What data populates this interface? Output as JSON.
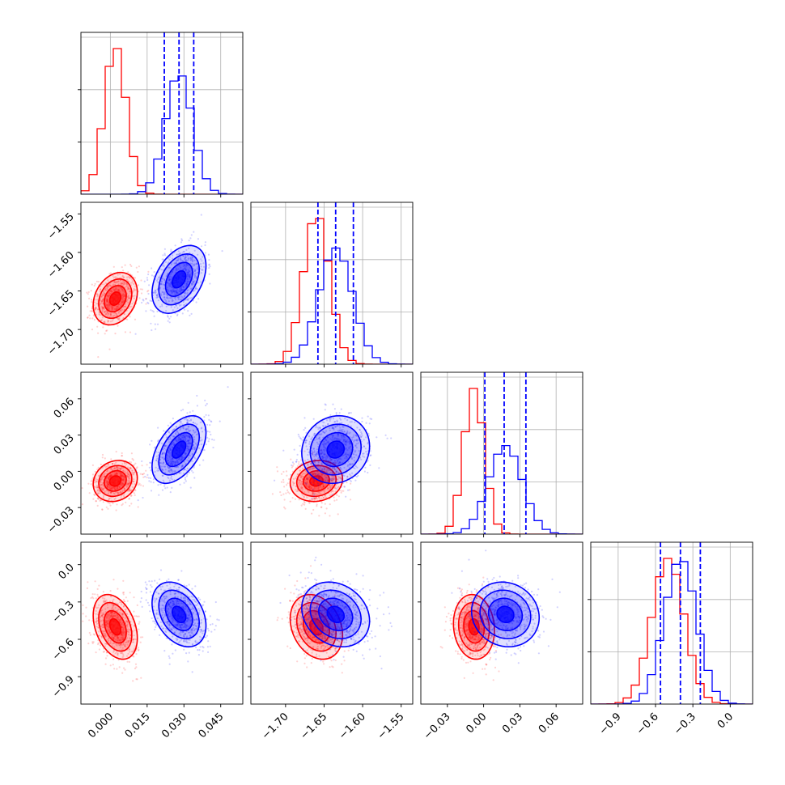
{
  "chart_data": {
    "type": "corner",
    "title": "",
    "parameters": [
      {
        "name": "",
        "range": [
          -0.012,
          0.054
        ],
        "ticks": [
          "0.000",
          "0.015",
          "0.030",
          "0.045"
        ],
        "tick_values": [
          0.0,
          0.015,
          0.03,
          0.045
        ]
      },
      {
        "name": "",
        "range": [
          -1.745,
          -1.535
        ],
        "ticks": [
          "−1.70",
          "−1.65",
          "−1.60",
          "−1.55"
        ],
        "tick_values": [
          -1.7,
          -1.65,
          -1.6,
          -1.55
        ]
      },
      {
        "name": "",
        "range": [
          -0.052,
          0.082
        ],
        "ticks": [
          "−0.03",
          "0.00",
          "0.03",
          "0.06"
        ],
        "tick_values": [
          -0.03,
          0.0,
          0.03,
          0.06
        ]
      },
      {
        "name": "",
        "range": [
          -1.12,
          0.18
        ],
        "ticks": [
          "−0.9",
          "−0.6",
          "−0.3",
          "0.0"
        ],
        "tick_values": [
          -0.9,
          -0.6,
          -0.3,
          0.0
        ]
      }
    ],
    "series": [
      {
        "color": "#ff0000",
        "means": [
          0.002,
          -1.66,
          -0.008,
          -0.5
        ],
        "sds": [
          0.0045,
          0.017,
          0.0085,
          0.13
        ],
        "correlations": {
          "0-1": 0.25,
          "0-2": 0.15,
          "0-3": -0.35,
          "1-2": 0.1,
          "1-3": -0.25,
          "2-3": -0.1
        }
      },
      {
        "color": "#0000ff",
        "means": [
          0.028,
          -1.635,
          0.018,
          -0.4
        ],
        "sds": [
          0.0055,
          0.022,
          0.014,
          0.13
        ],
        "correlations": {
          "0-1": 0.4,
          "0-2": 0.5,
          "0-3": -0.35,
          "1-2": 0.1,
          "1-3": -0.2,
          "2-3": -0.1
        }
      }
    ],
    "quantile_lines": {
      "color": "#0000ff",
      "style": "dashed",
      "values": [
        [
          0.022,
          0.028,
          0.034
        ],
        [
          -1.658,
          -1.635,
          -1.612
        ],
        [
          0.001,
          0.017,
          0.035
        ],
        [
          -0.56,
          -0.4,
          -0.24
        ]
      ]
    },
    "grid": true
  }
}
